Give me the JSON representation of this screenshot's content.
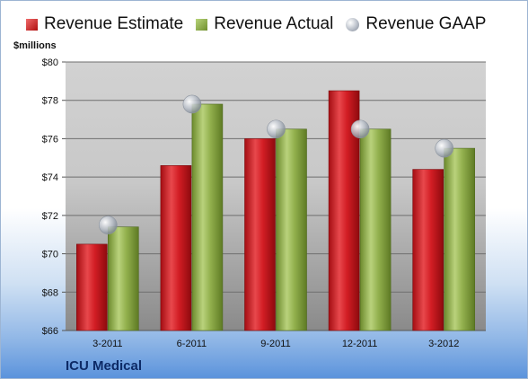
{
  "company": "ICU Medical",
  "unit_label": "$millions",
  "colors": {
    "estimate": "#c8161d",
    "actual": "#8fae4a",
    "gaap": "#b7bec8"
  },
  "chart_data": {
    "type": "bar",
    "categories": [
      "3-2011",
      "6-2011",
      "9-2011",
      "12-2011",
      "3-2012"
    ],
    "series": [
      {
        "name": "Revenue Estimate",
        "type": "bar",
        "values": [
          70.5,
          74.6,
          76.0,
          78.5,
          74.4
        ]
      },
      {
        "name": "Revenue Actual",
        "type": "bar",
        "values": [
          71.4,
          77.8,
          76.5,
          76.5,
          75.5
        ]
      },
      {
        "name": "Revenue GAAP",
        "type": "marker",
        "values": [
          71.5,
          77.8,
          76.5,
          76.5,
          75.5
        ]
      }
    ],
    "ylim": [
      66,
      80
    ],
    "yticks": [
      "$66",
      "$68",
      "$70",
      "$72",
      "$74",
      "$76",
      "$78",
      "$80"
    ],
    "ytick_values": [
      66,
      68,
      70,
      72,
      74,
      76,
      78,
      80
    ],
    "grid": true,
    "legend": "top"
  }
}
